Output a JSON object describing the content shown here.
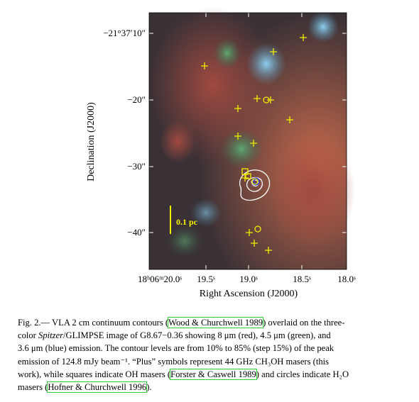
{
  "figure": {
    "scale_bar_label": "0.1 pc",
    "y_axis": {
      "label": "Declination (J2000)",
      "ticks": [
        "−21°37′10″",
        "−20″",
        "−30″",
        "−40″"
      ]
    },
    "x_axis": {
      "label": "Right Ascension (J2000)",
      "ticks": [
        "18ʰ06ᵐ20.0ˢ",
        "19.5ˢ",
        "19.0ˢ",
        "18.5ˢ",
        "18.0ˢ"
      ]
    }
  },
  "caption": {
    "lines": [
      [
        "Fig. 2.— VLA 2 cm continuum contours (",
        {
          "cite": "Wood & Churchwell 1989"
        },
        ") overlaid on the three-"
      ],
      [
        "color ",
        {
          "italic": "Spitzer"
        },
        "/GLIMPSE image of G8.67−0.36 showing 8 μm (red), 4.5 μm (green), and"
      ],
      [
        "3.6 μm (blue) emission. The contour levels are from 10% to 85% (step 15%) of the peak"
      ],
      [
        "emission of 124.8 mJy beam⁻¹. “Plus” symbols represent 44 GHz CH₃OH masers (this"
      ],
      [
        "work), while squares indicate OH masers (",
        {
          "cite": "Forster & Caswell 1989"
        },
        ") and circles indicate H₂O"
      ],
      [
        "masers (",
        {
          "cite": "Hofner & Churchwell 1996"
        },
        ")."
      ]
    ]
  }
}
